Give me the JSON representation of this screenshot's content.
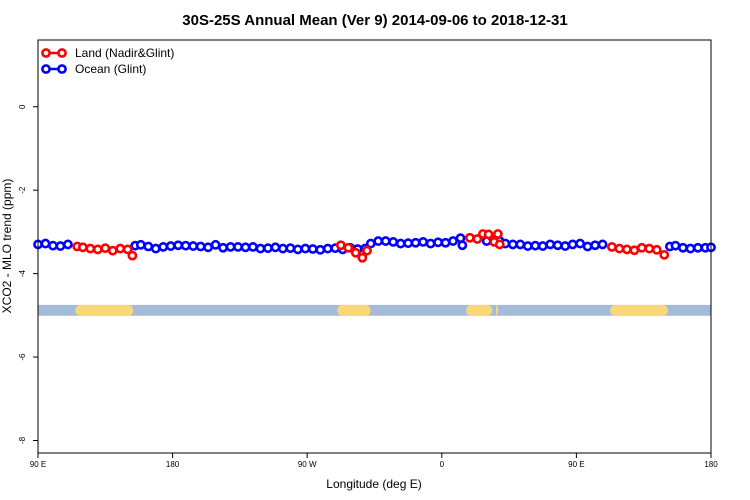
{
  "chart_data": {
    "type": "line",
    "title": "30S-25S Annual Mean (Ver 9)   2014-09-06 to 2018-12-31",
    "xlabel": "Longitude (deg E)",
    "ylabel": "XCO2 - MLO trend (ppm)",
    "xlim": [
      90,
      450
    ],
    "ylim": [
      -8.3,
      1.6
    ],
    "x_ticks": [
      {
        "value": 90,
        "label": "90 E"
      },
      {
        "value": 162,
        "label": "180"
      },
      {
        "value": 234,
        "label": "90 W"
      },
      {
        "value": 306,
        "label": "0"
      },
      {
        "value": 378,
        "label": "90 E"
      },
      {
        "value": 450,
        "label": "180"
      }
    ],
    "y_ticks": [
      {
        "value": 0,
        "label": "0"
      },
      {
        "value": -2,
        "label": "-2"
      },
      {
        "value": -4,
        "label": "-4"
      },
      {
        "value": -6,
        "label": "-6"
      },
      {
        "value": -8,
        "label": "-8"
      }
    ],
    "legend": [
      "Land (Nadir&Glint)",
      "Ocean (Glint)"
    ],
    "legend_position": "top-left",
    "colors": {
      "land": "#ff0000",
      "ocean": "#0000ff",
      "band_ocean": "#a3bad8",
      "band_land": "#fbd77a"
    },
    "surface_band": {
      "y_center": -4.88,
      "y_halfwidth": 0.13,
      "land_segments": [
        [
          110,
          141
        ],
        [
          250,
          268
        ],
        [
          319,
          333
        ],
        [
          335,
          336
        ],
        [
          396,
          427
        ]
      ]
    },
    "series": [
      {
        "name": "Land (Nadir&Glint)",
        "points": [
          [
            111,
            -3.35
          ],
          [
            114,
            -3.37
          ],
          [
            118,
            -3.4
          ],
          [
            122,
            -3.42
          ],
          [
            126,
            -3.39
          ],
          [
            130,
            -3.45
          ],
          [
            134,
            -3.4
          ],
          [
            138,
            -3.42
          ],
          [
            140.5,
            -3.57
          ],
          [
            252,
            -3.32
          ],
          [
            256,
            -3.38
          ],
          [
            260,
            -3.5
          ],
          [
            263.5,
            -3.62
          ],
          [
            266,
            -3.45
          ],
          [
            321,
            -3.14
          ],
          [
            325,
            -3.17
          ],
          [
            328,
            -3.05
          ],
          [
            331,
            -3.06
          ],
          [
            334,
            -3.24
          ],
          [
            336,
            -3.05
          ],
          [
            337,
            -3.3
          ],
          [
            397,
            -3.36
          ],
          [
            401,
            -3.4
          ],
          [
            405,
            -3.42
          ],
          [
            409,
            -3.44
          ],
          [
            413,
            -3.38
          ],
          [
            417,
            -3.4
          ],
          [
            421,
            -3.43
          ],
          [
            425,
            -3.55
          ]
        ]
      },
      {
        "name": "Ocean (Glint)",
        "points": [
          [
            90,
            -3.3
          ],
          [
            94,
            -3.28
          ],
          [
            98,
            -3.33
          ],
          [
            102,
            -3.34
          ],
          [
            106,
            -3.3
          ],
          [
            142,
            -3.33
          ],
          [
            145,
            -3.31
          ],
          [
            149,
            -3.35
          ],
          [
            153,
            -3.4
          ],
          [
            157,
            -3.36
          ],
          [
            161,
            -3.34
          ],
          [
            165,
            -3.32
          ],
          [
            169,
            -3.33
          ],
          [
            173,
            -3.34
          ],
          [
            177,
            -3.35
          ],
          [
            181,
            -3.37
          ],
          [
            185,
            -3.31
          ],
          [
            189,
            -3.38
          ],
          [
            193,
            -3.36
          ],
          [
            197,
            -3.36
          ],
          [
            201,
            -3.37
          ],
          [
            205,
            -3.36
          ],
          [
            209,
            -3.4
          ],
          [
            213,
            -3.39
          ],
          [
            217,
            -3.37
          ],
          [
            221,
            -3.4
          ],
          [
            225,
            -3.39
          ],
          [
            229,
            -3.42
          ],
          [
            233,
            -3.4
          ],
          [
            237,
            -3.41
          ],
          [
            241,
            -3.43
          ],
          [
            245,
            -3.4
          ],
          [
            249,
            -3.39
          ],
          [
            253,
            -3.42
          ],
          [
            257,
            -3.38
          ],
          [
            261,
            -3.41
          ],
          [
            265,
            -3.4
          ],
          [
            268,
            -3.28
          ],
          [
            272,
            -3.22
          ],
          [
            276,
            -3.22
          ],
          [
            280,
            -3.24
          ],
          [
            284,
            -3.28
          ],
          [
            288,
            -3.27
          ],
          [
            292,
            -3.26
          ],
          [
            296,
            -3.24
          ],
          [
            300,
            -3.28
          ],
          [
            304,
            -3.25
          ],
          [
            308,
            -3.26
          ],
          [
            312,
            -3.22
          ],
          [
            316,
            -3.15
          ],
          [
            317,
            -3.32
          ],
          [
            330,
            -3.22
          ],
          [
            334,
            -3.2
          ],
          [
            337,
            -3.22
          ],
          [
            340,
            -3.28
          ],
          [
            344,
            -3.3
          ],
          [
            348,
            -3.3
          ],
          [
            352,
            -3.34
          ],
          [
            356,
            -3.33
          ],
          [
            360,
            -3.34
          ],
          [
            364,
            -3.3
          ],
          [
            368,
            -3.32
          ],
          [
            372,
            -3.34
          ],
          [
            376,
            -3.3
          ],
          [
            380,
            -3.28
          ],
          [
            384,
            -3.35
          ],
          [
            388,
            -3.32
          ],
          [
            392,
            -3.3
          ],
          [
            428,
            -3.35
          ],
          [
            431,
            -3.33
          ],
          [
            435,
            -3.38
          ],
          [
            439,
            -3.4
          ],
          [
            443,
            -3.38
          ],
          [
            447,
            -3.38
          ],
          [
            450,
            -3.37
          ]
        ]
      }
    ]
  }
}
